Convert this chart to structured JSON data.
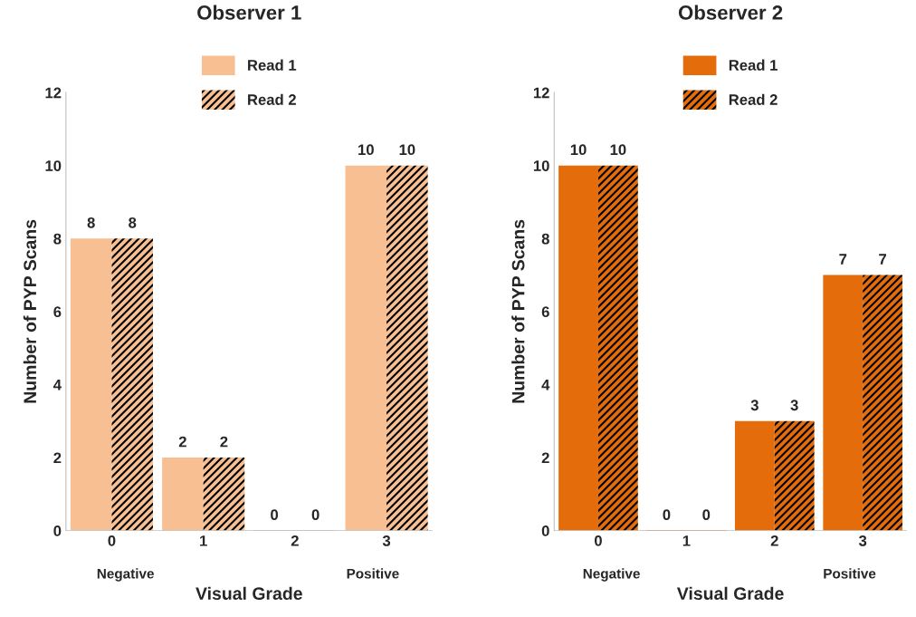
{
  "chart_data": [
    {
      "type": "bar",
      "title": "Observer 1",
      "xlabel": "Visual Grade",
      "ylabel": "Number of PYP Scans",
      "categories": [
        "0",
        "1",
        "2",
        "3"
      ],
      "series": [
        {
          "name": "Read 1",
          "color": "#f8bf92",
          "values": [
            8,
            2,
            0,
            10
          ]
        },
        {
          "name": "Read 2",
          "color": "#f8bf92",
          "values": [
            8,
            2,
            0,
            10
          ]
        }
      ],
      "ylim": [
        0,
        12
      ],
      "yticks": [
        0,
        2,
        4,
        6,
        8,
        10,
        12
      ],
      "grid": false,
      "legend": "top",
      "data_labels": true,
      "annotations": [
        "Negative",
        "Positive"
      ]
    },
    {
      "type": "bar",
      "title": "Observer 2",
      "xlabel": "Visual Grade",
      "ylabel": "Number of PYP Scans",
      "categories": [
        "0",
        "1",
        "2",
        "3"
      ],
      "series": [
        {
          "name": "Read 1",
          "color": "#e46c0a",
          "values": [
            10,
            0,
            3,
            7
          ]
        },
        {
          "name": "Read 2",
          "color": "#e46c0a",
          "values": [
            10,
            0,
            3,
            7
          ]
        }
      ],
      "ylim": [
        0,
        12
      ],
      "yticks": [
        0,
        2,
        4,
        6,
        8,
        10,
        12
      ],
      "grid": false,
      "legend": "top",
      "data_labels": true,
      "annotations": [
        "Negative",
        "Positive"
      ]
    }
  ]
}
